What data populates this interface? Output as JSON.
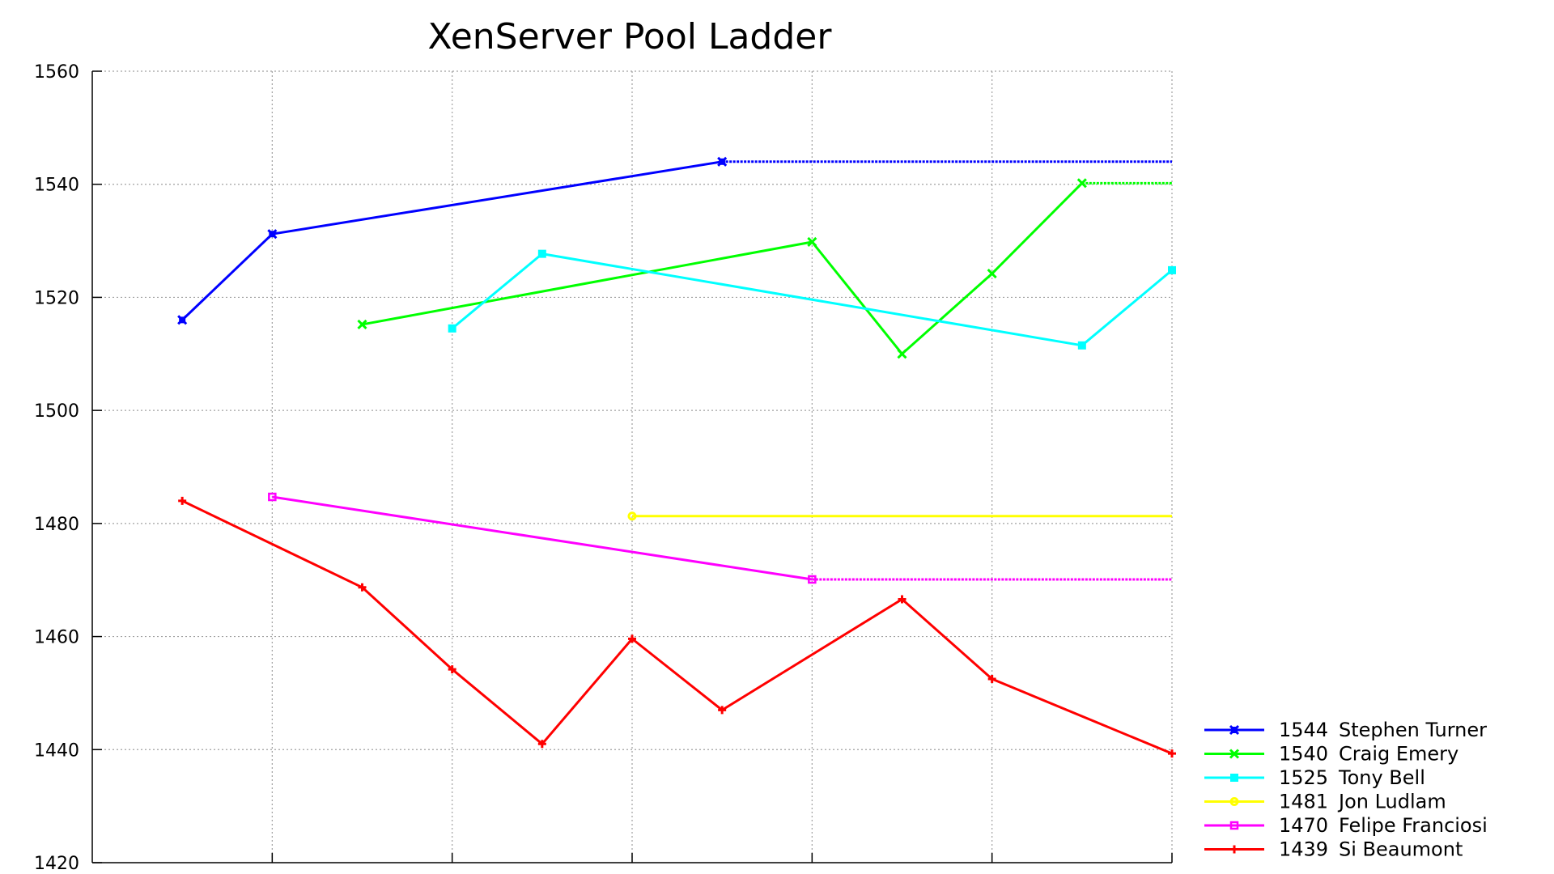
{
  "chart_data": {
    "type": "line",
    "title": "XenServer Pool Ladder",
    "xlabel": "",
    "ylabel": "",
    "x_range": [
      0,
      12
    ],
    "ylim": [
      1420,
      1560
    ],
    "yticks": [
      "1420",
      "1440",
      "1460",
      "1480",
      "1500",
      "1520",
      "1540",
      "1560"
    ],
    "xticks": [
      2,
      4,
      6,
      8,
      10,
      12
    ],
    "grid": true,
    "legend_position": "bottom-right",
    "series": [
      {
        "name": "Stephen Turner",
        "score": "1544",
        "color": "#0000ff",
        "marker": "filled-x",
        "points": [
          [
            1,
            1516
          ],
          [
            2,
            1531.2
          ],
          [
            7,
            1544
          ]
        ],
        "tail": [
          [
            7,
            1544
          ],
          [
            12,
            1544
          ]
        ]
      },
      {
        "name": "Craig Emery",
        "score": "1540",
        "color": "#00ff00",
        "marker": "x",
        "points": [
          [
            3,
            1515.2
          ],
          [
            8,
            1529.8
          ],
          [
            9,
            1510
          ],
          [
            10,
            1524.2
          ],
          [
            11,
            1540.2
          ]
        ],
        "tail": [
          [
            11,
            1540.2
          ],
          [
            12,
            1540.2
          ]
        ]
      },
      {
        "name": "Tony Bell",
        "score": "1525",
        "color": "#00ffff",
        "marker": "square",
        "points": [
          [
            4,
            1514.5
          ],
          [
            5,
            1527.7
          ],
          [
            11,
            1511.5
          ],
          [
            12,
            1524.8
          ]
        ],
        "tail": []
      },
      {
        "name": "Jon Ludlam",
        "score": "1481",
        "color": "#ffff00",
        "marker": "circle",
        "points": [
          [
            6,
            1481.3
          ]
        ],
        "tail": [
          [
            6,
            1481.3
          ],
          [
            12,
            1481.3
          ]
        ]
      },
      {
        "name": "Felipe Franciosi",
        "score": "1470",
        "color": "#ff00ff",
        "marker": "open-square",
        "points": [
          [
            2,
            1484.7
          ],
          [
            8,
            1470.1
          ]
        ],
        "tail": [
          [
            8,
            1470.1
          ],
          [
            12,
            1470.1
          ]
        ]
      },
      {
        "name": "Si Beaumont",
        "score": "1439",
        "color": "#ff0000",
        "marker": "plus",
        "points": [
          [
            1,
            1484
          ],
          [
            3,
            1468.7
          ],
          [
            4,
            1454.2
          ],
          [
            5,
            1441
          ],
          [
            6,
            1459.6
          ],
          [
            7,
            1447
          ],
          [
            9,
            1466.6
          ],
          [
            10,
            1452.5
          ],
          [
            12,
            1439.3
          ]
        ],
        "tail": []
      }
    ]
  }
}
